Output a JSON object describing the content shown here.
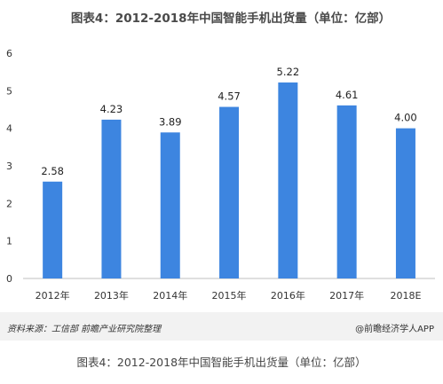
{
  "chart_data": {
    "type": "bar",
    "title": "图表4：2012-2018年中国智能手机出货量（单位：亿部）",
    "categories": [
      "2012年",
      "2013年",
      "2014年",
      "2015年",
      "2016年",
      "2017年",
      "2018E"
    ],
    "values": [
      2.58,
      4.23,
      3.89,
      4.57,
      5.22,
      4.61,
      4.0
    ],
    "value_labels": [
      "2.58",
      "4.23",
      "3.89",
      "4.57",
      "5.22",
      "4.61",
      "4.00"
    ],
    "ylim": [
      0,
      6
    ],
    "yticks": [
      "0",
      "1",
      "2",
      "3",
      "4",
      "5",
      "6"
    ],
    "grid": false,
    "bar_color": "#3d85e0"
  },
  "source_text": "资料来源：工信部  前瞻产业研究院整理",
  "brand_text": "@前瞻经济学人APP",
  "caption_text": "图表4：2012-2018年中国智能手机出货量（单位：亿部）"
}
